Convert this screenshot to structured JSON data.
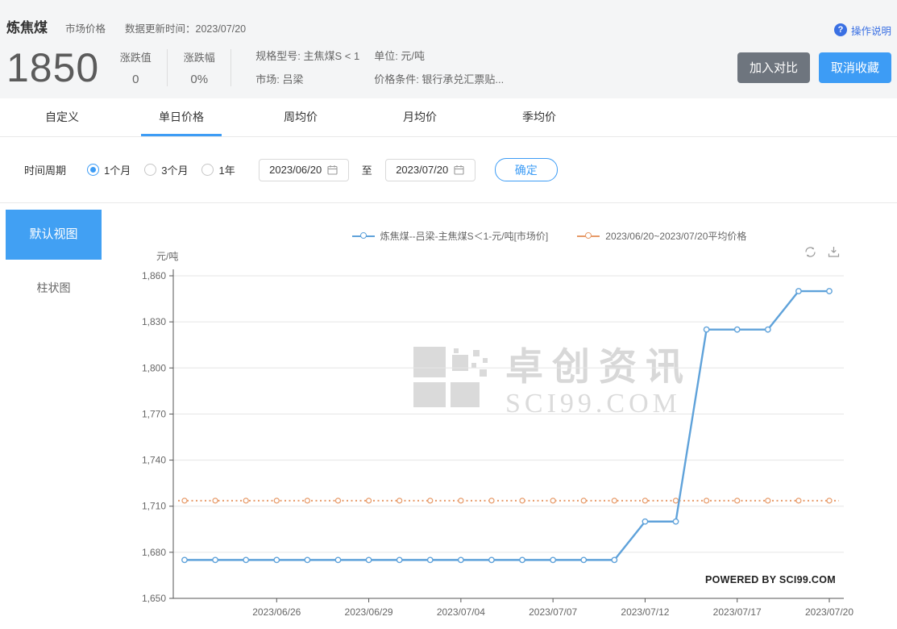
{
  "colors": {
    "accent": "#3d9cf5",
    "link_blue": "#3a70e3",
    "dark_button": "#6e757e",
    "series_blue": "#5fa2da",
    "series_orange": "#e79a68",
    "grid_line": "#e5e5e5",
    "axis_line": "#555555",
    "watermark_gray": "#d8d8d8"
  },
  "icons": {
    "help": "question-circle-icon",
    "calendar": "calendar-icon",
    "refresh": "refresh-icon",
    "download": "download-icon"
  },
  "header": {
    "title": "炼焦煤",
    "subtitle": "市场价格",
    "update_label": "数据更新时间：",
    "update_date": "2023/07/20",
    "help": "操作说明",
    "price": "1850",
    "change_label": "涨跌值",
    "change_value": "0",
    "change_pct_label": "涨跌幅",
    "change_pct_value": "0%",
    "spec_label": "规格型号: 主焦煤S < 1",
    "market_label": "市场: 吕梁",
    "unit_label": "单位: 元/吨",
    "condition_label": "价格条件: 银行承兑汇票贴...",
    "compare_button": "加入对比",
    "unfavorite_button": "取消收藏"
  },
  "tabs": [
    {
      "label": "自定义",
      "active": false
    },
    {
      "label": "单日价格",
      "active": true
    },
    {
      "label": "周均价",
      "active": false
    },
    {
      "label": "月均价",
      "active": false
    },
    {
      "label": "季均价",
      "active": false
    }
  ],
  "filter": {
    "label": "时间周期",
    "options": [
      {
        "label": "1个月",
        "selected": true
      },
      {
        "label": "3个月",
        "selected": false
      },
      {
        "label": "1年",
        "selected": false
      }
    ],
    "start_date": "2023/06/20",
    "to_label": "至",
    "end_date": "2023/07/20",
    "confirm_button": "确定"
  },
  "sidebar": {
    "items": [
      {
        "label": "默认视图",
        "active": true
      },
      {
        "label": "柱状图",
        "active": false
      }
    ]
  },
  "chart_data": {
    "type": "line",
    "title": "",
    "xlabel": "",
    "ylabel": "元/吨",
    "unit_label": "元/吨",
    "grid": true,
    "legend_position": "top",
    "ylim": [
      1650,
      1860
    ],
    "ytick_step": 30,
    "categories": [
      "2023/06/20",
      "2023/06/21",
      "2023/06/25",
      "2023/06/26",
      "2023/06/27",
      "2023/06/28",
      "2023/06/29",
      "2023/06/30",
      "2023/07/03",
      "2023/07/04",
      "2023/07/05",
      "2023/07/06",
      "2023/07/07",
      "2023/07/10",
      "2023/07/11",
      "2023/07/12",
      "2023/07/13",
      "2023/07/14",
      "2023/07/17",
      "2023/07/18",
      "2023/07/19",
      "2023/07/20"
    ],
    "x_tick_indices": [
      3,
      6,
      9,
      12,
      15,
      18,
      21
    ],
    "series": [
      {
        "name": "炼焦煤--吕梁-主焦煤S＜1-元/吨[市场价]",
        "values": [
          1675,
          1675,
          1675,
          1675,
          1675,
          1675,
          1675,
          1675,
          1675,
          1675,
          1675,
          1675,
          1675,
          1675,
          1675,
          1700,
          1700,
          1825,
          1825,
          1825,
          1850,
          1850
        ]
      },
      {
        "name": "2023/06/20~2023/07/20平均价格",
        "type": "average-line",
        "value": 1713.6
      }
    ]
  },
  "watermark": {
    "brand": "卓创资讯",
    "domain": "SCI99.COM"
  },
  "powered_by": "POWERED BY SCI99.COM"
}
